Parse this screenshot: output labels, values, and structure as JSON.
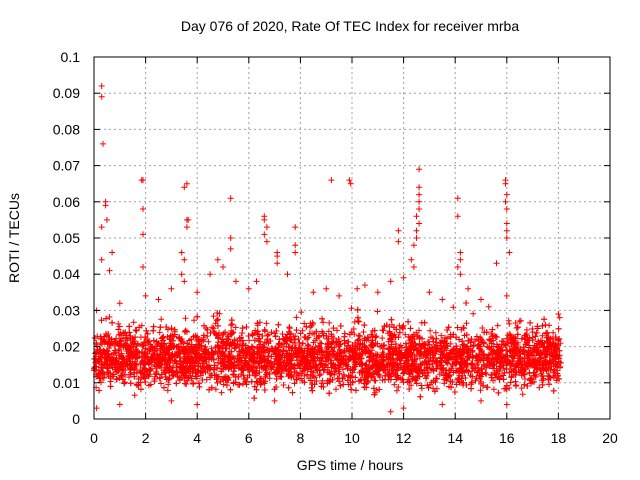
{
  "chart_data": {
    "type": "scatter",
    "title": "Day 076 of 2020, Rate Of TEC Index for receiver mrba",
    "xlabel": "GPS time / hours",
    "ylabel": "ROTI / TECUs",
    "xlim": [
      0,
      20
    ],
    "ylim": [
      0,
      0.1
    ],
    "xticks": [
      0,
      2,
      4,
      6,
      8,
      10,
      12,
      14,
      16,
      18,
      20
    ],
    "yticks": [
      0,
      0.01,
      0.02,
      0.03,
      0.04,
      0.05,
      0.06,
      0.07,
      0.08,
      0.09,
      0.1
    ],
    "xtick_labels": [
      "0",
      "2",
      "4",
      "6",
      "8",
      "10",
      "12",
      "14",
      "16",
      "18",
      "20"
    ],
    "ytick_labels": [
      "0",
      "0.01",
      "0.02",
      "0.03",
      "0.04",
      "0.05",
      "0.06",
      "0.07",
      "0.08",
      "0.09",
      "0.1"
    ],
    "grid": true,
    "marker": "+",
    "series": [
      {
        "name": "ROTI",
        "color": "#ff0000",
        "x_range": [
          0,
          18.1
        ],
        "bulk_range": [
          0.005,
          0.025
        ],
        "outliers": [
          [
            0.3,
            0.092
          ],
          [
            0.3,
            0.089
          ],
          [
            0.35,
            0.076
          ],
          [
            0.45,
            0.06
          ],
          [
            0.45,
            0.059
          ],
          [
            0.5,
            0.055
          ],
          [
            0.3,
            0.053
          ],
          [
            0.3,
            0.044
          ],
          [
            0.7,
            0.046
          ],
          [
            0.6,
            0.041
          ],
          [
            1.85,
            0.066
          ],
          [
            1.9,
            0.066
          ],
          [
            1.9,
            0.058
          ],
          [
            1.9,
            0.051
          ],
          [
            1.9,
            0.042
          ],
          [
            3.5,
            0.064
          ],
          [
            3.6,
            0.065
          ],
          [
            3.6,
            0.055
          ],
          [
            3.65,
            0.055
          ],
          [
            3.6,
            0.053
          ],
          [
            3.4,
            0.046
          ],
          [
            3.5,
            0.044
          ],
          [
            3.4,
            0.04
          ],
          [
            3.5,
            0.038
          ],
          [
            5.3,
            0.061
          ],
          [
            5.3,
            0.05
          ],
          [
            5.3,
            0.047
          ],
          [
            4.8,
            0.044
          ],
          [
            5.0,
            0.042
          ],
          [
            6.6,
            0.056
          ],
          [
            6.6,
            0.055
          ],
          [
            6.7,
            0.053
          ],
          [
            6.6,
            0.051
          ],
          [
            6.7,
            0.049
          ],
          [
            7.1,
            0.046
          ],
          [
            7.1,
            0.045
          ],
          [
            7.1,
            0.043
          ],
          [
            7.8,
            0.053
          ],
          [
            7.8,
            0.048
          ],
          [
            7.8,
            0.046
          ],
          [
            9.2,
            0.066
          ],
          [
            9.9,
            0.066
          ],
          [
            9.95,
            0.065
          ],
          [
            11.8,
            0.052
          ],
          [
            11.8,
            0.049
          ],
          [
            12.6,
            0.069
          ],
          [
            12.6,
            0.064
          ],
          [
            12.6,
            0.062
          ],
          [
            12.6,
            0.06
          ],
          [
            12.6,
            0.058
          ],
          [
            12.5,
            0.056
          ],
          [
            12.6,
            0.054
          ],
          [
            12.5,
            0.052
          ],
          [
            12.5,
            0.05
          ],
          [
            12.4,
            0.048
          ],
          [
            12.3,
            0.044
          ],
          [
            12.4,
            0.042
          ],
          [
            14.1,
            0.061
          ],
          [
            14.1,
            0.056
          ],
          [
            14.2,
            0.046
          ],
          [
            14.2,
            0.044
          ],
          [
            14.1,
            0.042
          ],
          [
            14.2,
            0.04
          ],
          [
            15.6,
            0.043
          ],
          [
            15.95,
            0.066
          ],
          [
            15.95,
            0.065
          ],
          [
            16.0,
            0.062
          ],
          [
            15.95,
            0.06
          ],
          [
            16.0,
            0.058
          ],
          [
            16.0,
            0.054
          ],
          [
            16.0,
            0.052
          ],
          [
            16.0,
            0.05
          ],
          [
            16.1,
            0.046
          ],
          [
            16.0,
            0.034
          ],
          [
            0.1,
            0.03
          ],
          [
            1.0,
            0.032
          ],
          [
            2.0,
            0.034
          ],
          [
            2.5,
            0.033
          ],
          [
            3.0,
            0.036
          ],
          [
            4.0,
            0.035
          ],
          [
            4.5,
            0.04
          ],
          [
            5.5,
            0.038
          ],
          [
            6.0,
            0.036
          ],
          [
            6.3,
            0.038
          ],
          [
            7.5,
            0.04
          ],
          [
            8.5,
            0.035
          ],
          [
            9.0,
            0.036
          ],
          [
            9.5,
            0.034
          ],
          [
            10.2,
            0.036
          ],
          [
            10.5,
            0.037
          ],
          [
            11.0,
            0.035
          ],
          [
            11.5,
            0.038
          ],
          [
            12.0,
            0.039
          ],
          [
            13.0,
            0.035
          ],
          [
            13.5,
            0.033
          ],
          [
            14.5,
            0.036
          ],
          [
            15.0,
            0.033
          ],
          [
            15.3,
            0.031
          ],
          [
            16.5,
            0.027
          ],
          [
            17.0,
            0.024
          ],
          [
            17.5,
            0.026
          ],
          [
            18.0,
            0.029
          ],
          [
            18.05,
            0.028
          ],
          [
            0.1,
            0.003
          ],
          [
            1.0,
            0.004
          ],
          [
            3.0,
            0.005
          ],
          [
            4.0,
            0.004
          ],
          [
            7.0,
            0.005
          ],
          [
            11.5,
            0.002
          ],
          [
            12.0,
            0.003
          ],
          [
            13.5,
            0.004
          ],
          [
            15.0,
            0.005
          ],
          [
            16.0,
            0.004
          ]
        ]
      }
    ]
  }
}
